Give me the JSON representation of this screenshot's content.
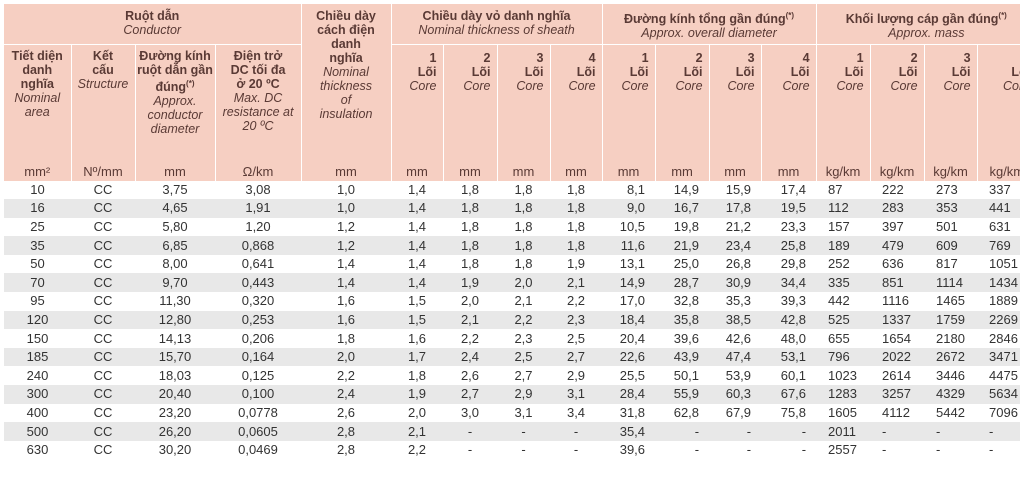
{
  "header": {
    "conductor": "Ruột dẫn",
    "conductor_en": "Conductor",
    "insulation": "Chiều dày cách điện danh nghĩa",
    "insulation_en": "Nominal thickness of insulation",
    "sheath": "Chiều dày vỏ danh nghĩa",
    "sheath_en": "Nominal thickness of sheath",
    "diameter": "Đường kính tổng gần đúng",
    "diameter_en": "Approx. overall diameter",
    "mass": "Khối lượng cáp gần đúng",
    "mass_en": "Approx. mass",
    "star": "(*)",
    "area": "Tiết diện danh nghĩa",
    "area_en": "Nominal area",
    "structure": "Kết cấu",
    "structure_en": "Structure",
    "cond_dia": "Đường kính ruột dẫn gần đúng",
    "cond_dia_en": "Approx. conductor diameter",
    "resistance": "Điện trở DC tối đa ở 20 ºC",
    "resistance_en": "Max. DC resistance at 20 ºC",
    "core_vi": "Lõi",
    "core_en": "Core",
    "core_nums": [
      "1",
      "2",
      "3",
      "4"
    ]
  },
  "units": {
    "area": "mm²",
    "structure": "Nº/mm",
    "cond_dia": "mm",
    "resistance": "Ω/km",
    "insulation": "mm",
    "thickness": "mm",
    "diameter": "mm",
    "mass": "kg/km"
  },
  "rows": [
    [
      "10",
      "CC",
      "3,75",
      "3,08",
      "1,0",
      "1,4",
      "1,8",
      "1,8",
      "1,8",
      "8,1",
      "14,9",
      "15,9",
      "17,4",
      "87",
      "222",
      "273",
      "337"
    ],
    [
      "16",
      "CC",
      "4,65",
      "1,91",
      "1,0",
      "1,4",
      "1,8",
      "1,8",
      "1,8",
      "9,0",
      "16,7",
      "17,8",
      "19,5",
      "112",
      "283",
      "353",
      "441"
    ],
    [
      "25",
      "CC",
      "5,80",
      "1,20",
      "1,2",
      "1,4",
      "1,8",
      "1,8",
      "1,8",
      "10,5",
      "19,8",
      "21,2",
      "23,3",
      "157",
      "397",
      "501",
      "631"
    ],
    [
      "35",
      "CC",
      "6,85",
      "0,868",
      "1,2",
      "1,4",
      "1,8",
      "1,8",
      "1,8",
      "11,6",
      "21,9",
      "23,4",
      "25,8",
      "189",
      "479",
      "609",
      "769"
    ],
    [
      "50",
      "CC",
      "8,00",
      "0,641",
      "1,4",
      "1,4",
      "1,8",
      "1,8",
      "1,9",
      "13,1",
      "25,0",
      "26,8",
      "29,8",
      "252",
      "636",
      "817",
      "1051"
    ],
    [
      "70",
      "CC",
      "9,70",
      "0,443",
      "1,4",
      "1,4",
      "1,9",
      "2,0",
      "2,1",
      "14,9",
      "28,7",
      "30,9",
      "34,4",
      "335",
      "851",
      "1114",
      "1434"
    ],
    [
      "95",
      "CC",
      "11,30",
      "0,320",
      "1,6",
      "1,5",
      "2,0",
      "2,1",
      "2,2",
      "17,0",
      "32,8",
      "35,3",
      "39,3",
      "442",
      "1116",
      "1465",
      "1889"
    ],
    [
      "120",
      "CC",
      "12,80",
      "0,253",
      "1,6",
      "1,5",
      "2,1",
      "2,2",
      "2,3",
      "18,4",
      "35,8",
      "38,5",
      "42,8",
      "525",
      "1337",
      "1759",
      "2269"
    ],
    [
      "150",
      "CC",
      "14,13",
      "0,206",
      "1,8",
      "1,6",
      "2,2",
      "2,3",
      "2,5",
      "20,4",
      "39,6",
      "42,6",
      "48,0",
      "655",
      "1654",
      "2180",
      "2846"
    ],
    [
      "185",
      "CC",
      "15,70",
      "0,164",
      "2,0",
      "1,7",
      "2,4",
      "2,5",
      "2,7",
      "22,6",
      "43,9",
      "47,4",
      "53,1",
      "796",
      "2022",
      "2672",
      "3471"
    ],
    [
      "240",
      "CC",
      "18,03",
      "0,125",
      "2,2",
      "1,8",
      "2,6",
      "2,7",
      "2,9",
      "25,5",
      "50,1",
      "53,9",
      "60,1",
      "1023",
      "2614",
      "3446",
      "4475"
    ],
    [
      "300",
      "CC",
      "20,40",
      "0,100",
      "2,4",
      "1,9",
      "2,7",
      "2,9",
      "3,1",
      "28,4",
      "55,9",
      "60,3",
      "67,6",
      "1283",
      "3257",
      "4329",
      "5634"
    ],
    [
      "400",
      "CC",
      "23,20",
      "0,0778",
      "2,6",
      "2,0",
      "3,0",
      "3,1",
      "3,4",
      "31,8",
      "62,8",
      "67,9",
      "75,8",
      "1605",
      "4112",
      "5442",
      "7096"
    ],
    [
      "500",
      "CC",
      "26,20",
      "0,0605",
      "2,8",
      "2,1",
      "-",
      "-",
      "-",
      "35,4",
      "-",
      "-",
      "-",
      "2011",
      "-",
      "-",
      "-"
    ],
    [
      "630",
      "CC",
      "30,20",
      "0,0469",
      "2,8",
      "2,2",
      "-",
      "-",
      "-",
      "39,6",
      "-",
      "-",
      "-",
      "2557",
      "-",
      "-",
      "-"
    ]
  ]
}
